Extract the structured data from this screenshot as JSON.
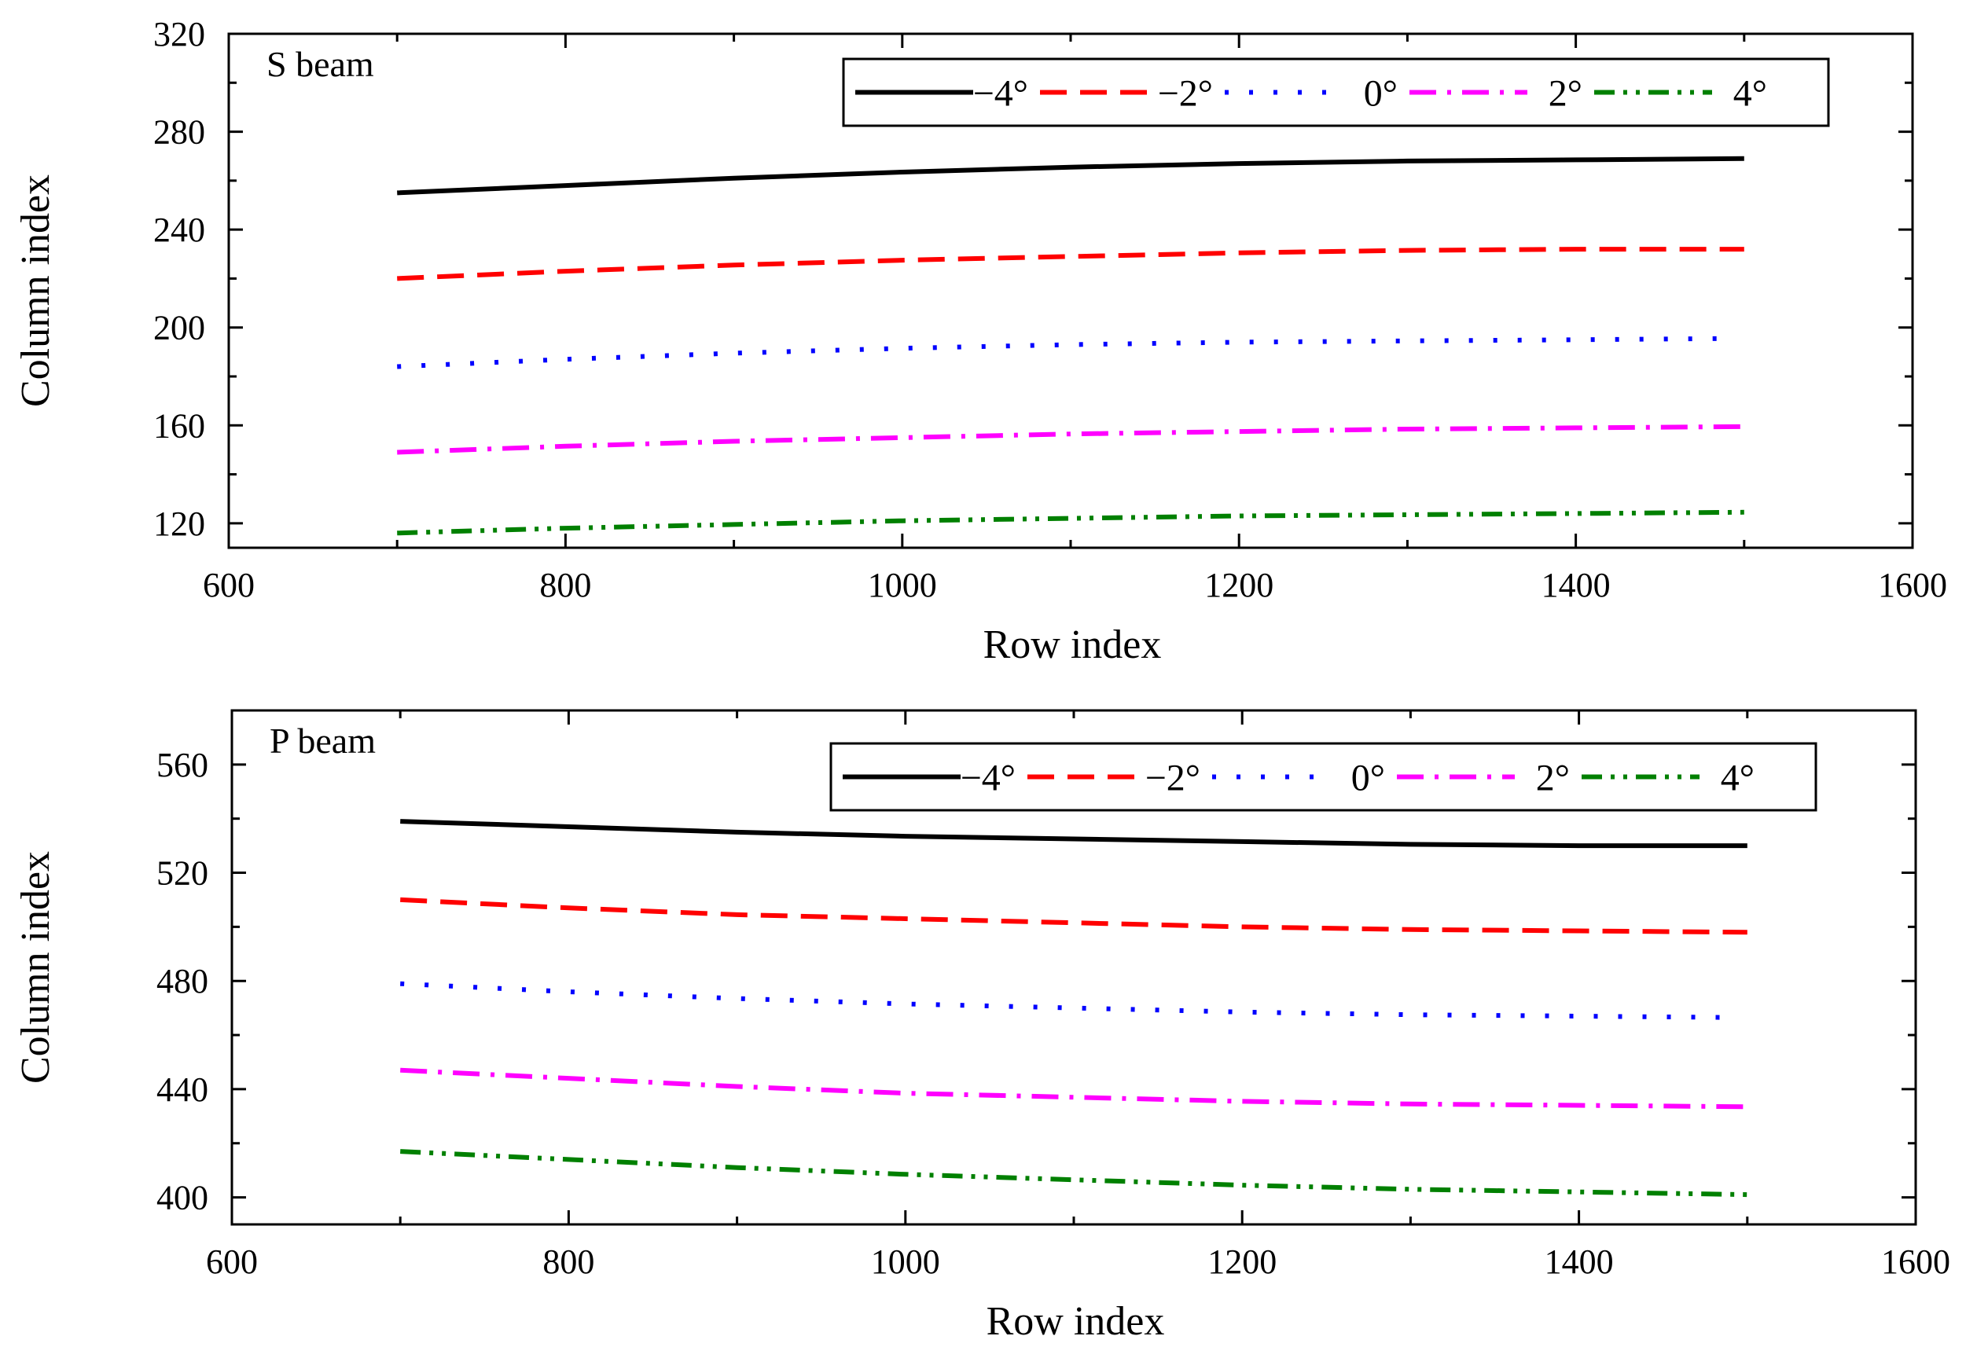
{
  "chart_data": [
    {
      "type": "line",
      "title": "",
      "panel_label": "S beam",
      "xlabel": "Row index",
      "ylabel": "Column index",
      "xlim": [
        600,
        1600
      ],
      "ylim": [
        110,
        320
      ],
      "xticks": [
        600,
        800,
        1000,
        1200,
        1400,
        1600
      ],
      "yticks": [
        120,
        160,
        200,
        240,
        280,
        320
      ],
      "legend_position": "top-right",
      "grid": false,
      "series": [
        {
          "name": "−4°",
          "color": "#000000",
          "style": "solid",
          "x": [
            700,
            800,
            900,
            1000,
            1100,
            1200,
            1300,
            1400,
            1500
          ],
          "y": [
            255,
            258,
            261,
            263.5,
            265.5,
            267,
            268,
            268.5,
            269
          ]
        },
        {
          "name": "−2°",
          "color": "#ff0000",
          "style": "dash",
          "x": [
            700,
            800,
            900,
            1000,
            1100,
            1200,
            1300,
            1400,
            1500
          ],
          "y": [
            220,
            223,
            225.5,
            227.5,
            229,
            230.5,
            231.5,
            232,
            232
          ]
        },
        {
          "name": "0°",
          "color": "#0000ff",
          "style": "dot",
          "x": [
            700,
            800,
            900,
            1000,
            1100,
            1200,
            1300,
            1400,
            1490
          ],
          "y": [
            184,
            187,
            189.5,
            191.5,
            193,
            194,
            194.5,
            195,
            195.5
          ]
        },
        {
          "name": "2°",
          "color": "#ff00ff",
          "style": "dashdot",
          "x": [
            700,
            800,
            900,
            1000,
            1100,
            1200,
            1300,
            1400,
            1500
          ],
          "y": [
            149,
            151.5,
            153.5,
            155,
            156.5,
            157.5,
            158.5,
            159,
            159.5
          ]
        },
        {
          "name": "4°",
          "color": "#008000",
          "style": "dashdotdot",
          "x": [
            700,
            800,
            900,
            1000,
            1100,
            1200,
            1300,
            1400,
            1500
          ],
          "y": [
            116,
            118,
            119.5,
            121,
            122,
            123,
            123.5,
            124,
            124.5
          ]
        }
      ]
    },
    {
      "type": "line",
      "title": "",
      "panel_label": "P beam",
      "xlabel": "Row index",
      "ylabel": "Column index",
      "xlim": [
        600,
        1600
      ],
      "ylim": [
        390,
        580
      ],
      "xticks": [
        600,
        800,
        1000,
        1200,
        1400,
        1600
      ],
      "yticks": [
        400,
        440,
        480,
        520,
        560
      ],
      "legend_position": "top-right",
      "grid": false,
      "series": [
        {
          "name": "−4°",
          "color": "#000000",
          "style": "solid",
          "x": [
            700,
            800,
            900,
            1000,
            1100,
            1200,
            1300,
            1400,
            1500
          ],
          "y": [
            539,
            537,
            535,
            533.5,
            532.5,
            531.5,
            530.5,
            530,
            530
          ]
        },
        {
          "name": "−2°",
          "color": "#ff0000",
          "style": "dash",
          "x": [
            700,
            800,
            900,
            1000,
            1100,
            1200,
            1300,
            1400,
            1500
          ],
          "y": [
            510,
            507,
            504.5,
            503,
            501.5,
            500,
            499,
            498.5,
            498
          ]
        },
        {
          "name": "0°",
          "color": "#0000ff",
          "style": "dot",
          "x": [
            700,
            800,
            900,
            1000,
            1100,
            1200,
            1300,
            1400,
            1490
          ],
          "y": [
            479,
            476,
            473.5,
            471.5,
            470,
            468.5,
            467.5,
            467,
            466.5
          ]
        },
        {
          "name": "2°",
          "color": "#ff00ff",
          "style": "dashdot",
          "x": [
            700,
            800,
            900,
            1000,
            1100,
            1200,
            1300,
            1400,
            1500
          ],
          "y": [
            447,
            444,
            441,
            438.5,
            437,
            435.5,
            434.5,
            434,
            433.5
          ]
        },
        {
          "name": "4°",
          "color": "#008000",
          "style": "dashdotdot",
          "x": [
            700,
            800,
            900,
            1000,
            1100,
            1200,
            1300,
            1400,
            1500
          ],
          "y": [
            417,
            414,
            411,
            408.5,
            406.5,
            404.5,
            403,
            402,
            401
          ]
        }
      ]
    }
  ]
}
